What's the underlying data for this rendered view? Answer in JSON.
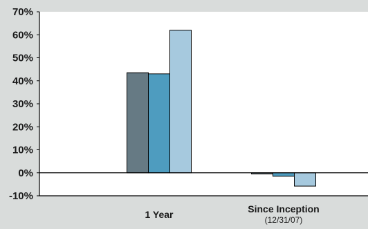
{
  "chart_data": {
    "type": "bar",
    "title": "",
    "xlabel": "",
    "ylabel": "",
    "ylim": [
      -10,
      70
    ],
    "yticks": [
      "70%",
      "60%",
      "50%",
      "40%",
      "30%",
      "20%",
      "10%",
      "0%",
      "-10%"
    ],
    "yticks_values": [
      70,
      60,
      50,
      40,
      30,
      20,
      10,
      0,
      -10
    ],
    "categories": [
      "1 Year",
      "Since Inception"
    ],
    "category_sublabels": [
      "",
      "(12/31/07)"
    ],
    "series": [
      {
        "values": [
          43.5,
          -0.5
        ],
        "color": "#667a84"
      },
      {
        "values": [
          43.0,
          -1.5
        ],
        "color": "#4e9cbf"
      },
      {
        "values": [
          62.0,
          -5.8
        ],
        "color": "#a6c9de"
      }
    ],
    "grid": false,
    "legend": "none"
  }
}
